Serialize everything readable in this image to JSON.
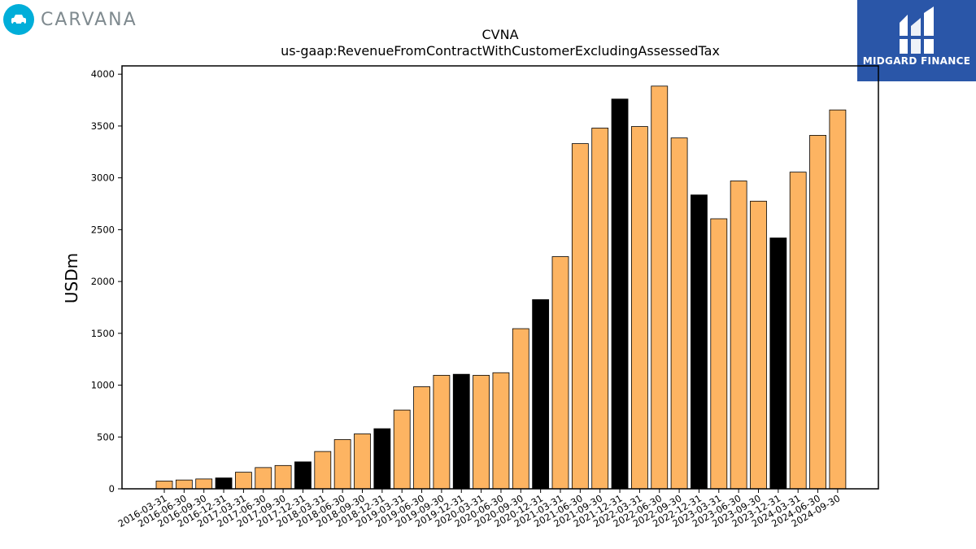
{
  "brand": {
    "left_logo_text": "CARVANA",
    "right_logo_text": "MIDGARD FINANCE",
    "left_logo_icon": "car-icon",
    "right_logo_icon": "midgard-mark-icon"
  },
  "chart_data": {
    "type": "bar",
    "title": "CVNA",
    "subtitle": "us-gaap:RevenueFromContractWithCustomerExcludingAssessedTax",
    "xlabel": "",
    "ylabel": "USDm",
    "ylim": [
      0,
      4080
    ],
    "yticks": [
      0,
      500,
      1000,
      1500,
      2000,
      2500,
      3000,
      3500,
      4000
    ],
    "grid": false,
    "colors": {
      "quarter": "#fdb462",
      "year_end": "#000000",
      "edge": "#000000"
    },
    "categories": [
      "2016-03-31",
      "2016-06-30",
      "2016-09-30",
      "2016-12-31",
      "2017-03-31",
      "2017-06-30",
      "2017-09-30",
      "2017-12-31",
      "2018-03-31",
      "2018-06-30",
      "2018-09-30",
      "2018-12-31",
      "2019-03-31",
      "2019-06-30",
      "2019-09-30",
      "2019-12-31",
      "2020-03-31",
      "2020-06-30",
      "2020-09-30",
      "2020-12-31",
      "2021-03-31",
      "2021-06-30",
      "2021-09-30",
      "2021-12-31",
      "2022-03-31",
      "2022-06-30",
      "2022-09-30",
      "2022-12-31",
      "2023-03-31",
      "2023-06-30",
      "2023-09-30",
      "2023-12-31",
      "2024-03-31",
      "2024-06-30",
      "2024-09-30"
    ],
    "values": [
      75,
      85,
      95,
      105,
      160,
      205,
      225,
      260,
      360,
      475,
      530,
      580,
      760,
      985,
      1095,
      1105,
      1095,
      1120,
      1545,
      1825,
      2240,
      3330,
      3480,
      3760,
      3495,
      3885,
      3385,
      2835,
      2605,
      2970,
      2775,
      2420,
      3055,
      3410,
      3655
    ]
  }
}
